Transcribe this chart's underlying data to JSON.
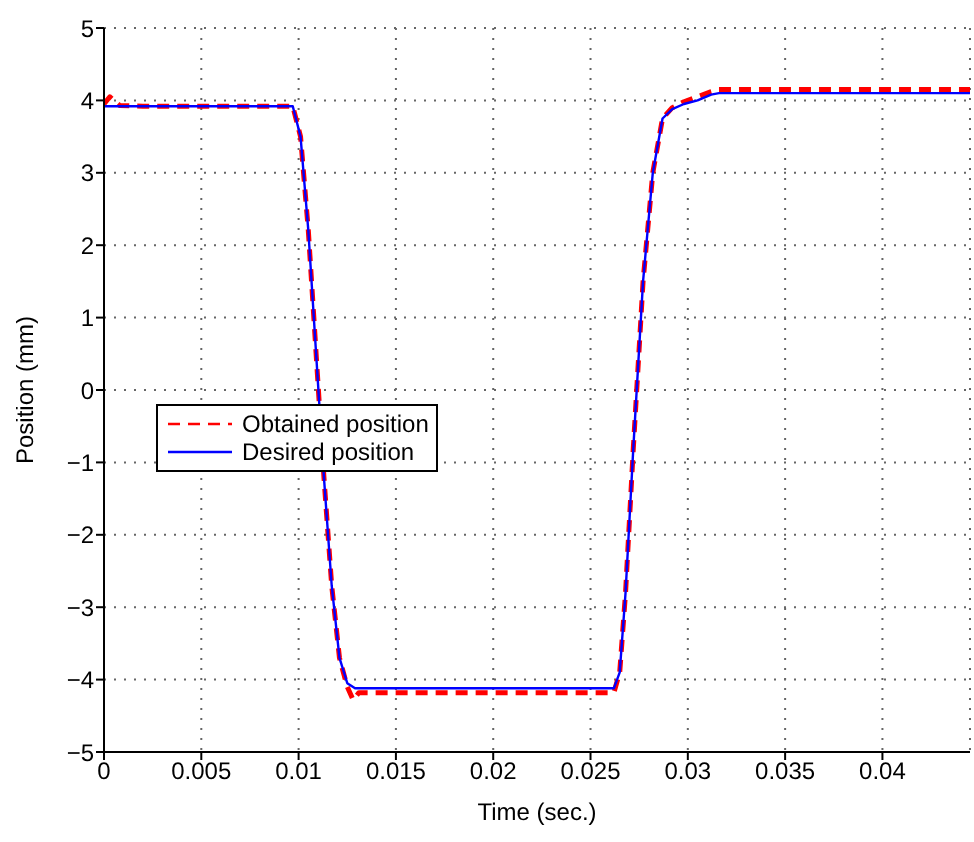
{
  "chart_data": {
    "type": "line",
    "xlabel": "Time (sec.)",
    "ylabel": "Position (mm)",
    "xlim": [
      0,
      0.0445
    ],
    "xticks": [
      0,
      0.005,
      0.01,
      0.015,
      0.02,
      0.025,
      0.03,
      0.035,
      0.04
    ],
    "ylim": [
      -5,
      5
    ],
    "yticks": [
      -5,
      -4,
      -3,
      -2,
      -1,
      0,
      1,
      2,
      3,
      4,
      5
    ],
    "grid": true,
    "legend": "left",
    "marker": "none",
    "series": [
      {
        "name": "Obtained position",
        "color": "#ff0000",
        "line_style": "dashed",
        "x": [
          0,
          0.0003,
          0.0008,
          0.002,
          0.005,
          0.0097,
          0.0101,
          0.0105,
          0.0109,
          0.0113,
          0.0117,
          0.0121,
          0.0125,
          0.0128,
          0.0131,
          0.0135,
          0.02,
          0.0262,
          0.0265,
          0.0268,
          0.0272,
          0.0277,
          0.0282,
          0.0287,
          0.0292,
          0.0298,
          0.0305,
          0.0312,
          0.0316,
          0.035,
          0.0445
        ],
        "values": [
          3.95,
          4.05,
          3.93,
          3.92,
          3.92,
          3.92,
          3.5,
          2.2,
          0.5,
          -1.2,
          -2.7,
          -3.7,
          -4.1,
          -4.28,
          -4.18,
          -4.18,
          -4.18,
          -4.18,
          -3.9,
          -2.8,
          -0.8,
          1.5,
          3.0,
          3.75,
          3.9,
          3.98,
          4.05,
          4.12,
          4.15,
          4.15,
          4.15
        ]
      },
      {
        "name": "Desired position",
        "color": "#0000ff",
        "line_style": "solid",
        "x": [
          0,
          0.005,
          0.0097,
          0.0101,
          0.0105,
          0.0109,
          0.0113,
          0.0117,
          0.0121,
          0.0125,
          0.0129,
          0.02,
          0.0262,
          0.0265,
          0.0268,
          0.0272,
          0.0277,
          0.0282,
          0.0287,
          0.0292,
          0.0298,
          0.0305,
          0.0312,
          0.0316,
          0.035,
          0.0445
        ],
        "values": [
          3.92,
          3.92,
          3.92,
          3.5,
          2.2,
          0.5,
          -1.2,
          -2.7,
          -3.7,
          -4.05,
          -4.12,
          -4.12,
          -4.12,
          -3.9,
          -2.8,
          -0.8,
          1.5,
          3.0,
          3.75,
          3.88,
          3.95,
          4.0,
          4.08,
          4.1,
          4.1,
          4.1
        ]
      }
    ]
  }
}
